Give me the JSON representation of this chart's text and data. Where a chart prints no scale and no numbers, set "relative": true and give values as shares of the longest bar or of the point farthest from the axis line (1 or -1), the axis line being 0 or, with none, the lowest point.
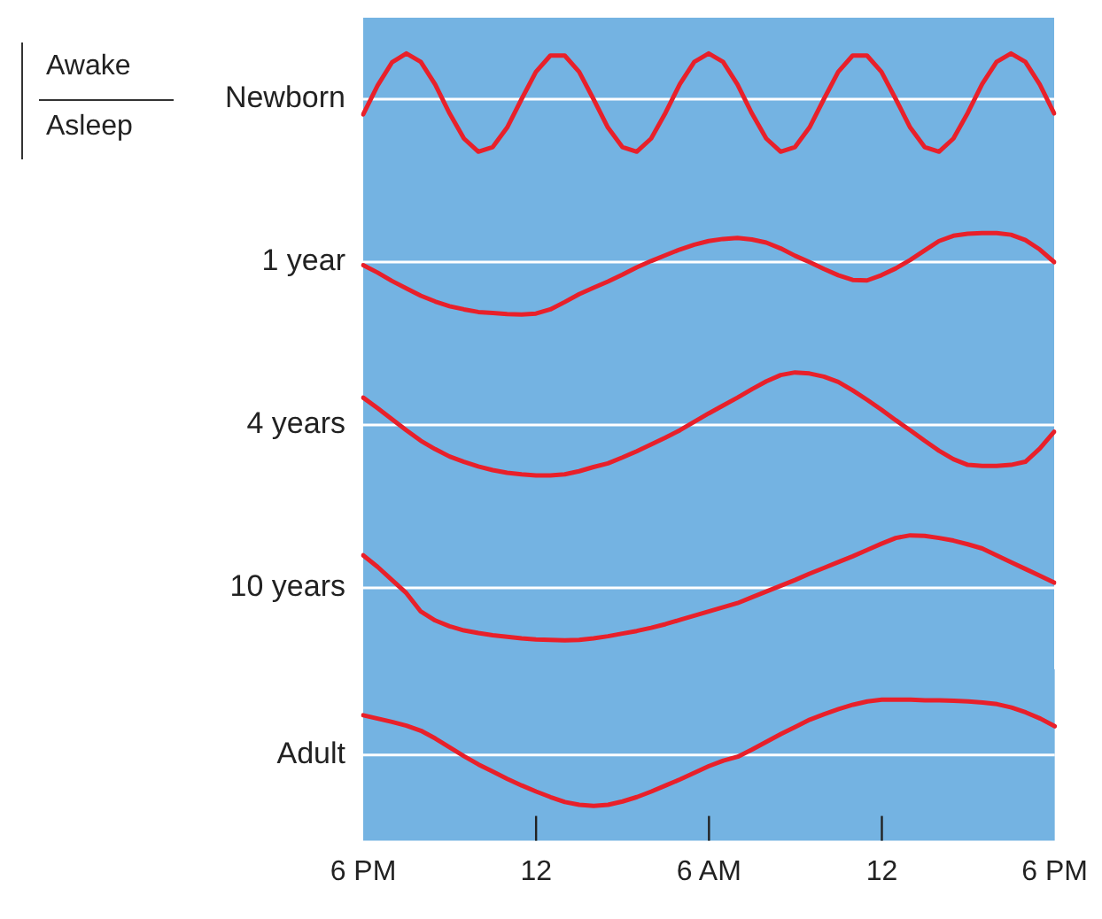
{
  "chart_data": [
    {
      "type": "line",
      "ylabel": "Newborn",
      "annotations": [
        "Awake",
        "Asleep"
      ],
      "relative": true,
      "marker": "none",
      "tick_labels": false,
      "categories": [
        null,
        null,
        null,
        null,
        null,
        null,
        null,
        null,
        null,
        null,
        null,
        null,
        null,
        null,
        null,
        null,
        null,
        null,
        null,
        null,
        null,
        null,
        null,
        null,
        null,
        null,
        null,
        null,
        null,
        null,
        null,
        null,
        null,
        null,
        null,
        null,
        null,
        null,
        null,
        null,
        null,
        null,
        null,
        null,
        null,
        null,
        null,
        null,
        null
      ],
      "series": [
        {
          "color": "#e8202a",
          "values": [
            -0.29,
            0.26,
            0.7,
            0.87,
            0.71,
            0.28,
            -0.27,
            -0.75,
            -1,
            -0.91,
            -0.54,
            0,
            0.52,
            0.83,
            0.83,
            0.52,
            0,
            -0.54,
            -0.91,
            -1,
            -0.75,
            -0.26,
            0.29,
            0.71,
            0.87,
            0.71,
            0.28,
            -0.27,
            -0.75,
            -1,
            -0.91,
            -0.54,
            0,
            0.52,
            0.83,
            0.83,
            0.52,
            0,
            -0.54,
            -0.91,
            -1,
            -0.75,
            -0.26,
            0.29,
            0.71,
            0.87,
            0.71,
            0.28,
            -0.27
          ]
        }
      ]
    },
    {
      "type": "line",
      "ylabel": "1 year",
      "relative": true,
      "marker": "none",
      "tick_labels": false,
      "categories": [
        null,
        null,
        null,
        null,
        null,
        null,
        null,
        null,
        null,
        null,
        null,
        null,
        null,
        null,
        null,
        null,
        null,
        null,
        null,
        null,
        null,
        null,
        null,
        null,
        null,
        null,
        null,
        null,
        null,
        null,
        null,
        null,
        null,
        null,
        null,
        null,
        null,
        null,
        null,
        null,
        null,
        null,
        null,
        null,
        null,
        null,
        null,
        null,
        null
      ],
      "series": [
        {
          "color": "#e8202a",
          "values": [
            -0.06,
            -0.2,
            -0.36,
            -0.5,
            -0.64,
            -0.75,
            -0.84,
            -0.9,
            -0.95,
            -0.97,
            -0.99,
            -1,
            -0.98,
            -0.9,
            -0.76,
            -0.61,
            -0.49,
            -0.37,
            -0.24,
            -0.1,
            0.02,
            0.13,
            0.24,
            0.33,
            0.4,
            0.44,
            0.46,
            0.43,
            0.37,
            0.26,
            0.12,
            0,
            -0.13,
            -0.25,
            -0.34,
            -0.35,
            -0.25,
            -0.12,
            0.04,
            0.22,
            0.4,
            0.5,
            0.54,
            0.55,
            0.55,
            0.52,
            0.42,
            0.24,
            0
          ]
        }
      ]
    },
    {
      "type": "line",
      "ylabel": "4 years",
      "relative": true,
      "marker": "none",
      "tick_labels": false,
      "categories": [
        null,
        null,
        null,
        null,
        null,
        null,
        null,
        null,
        null,
        null,
        null,
        null,
        null,
        null,
        null,
        null,
        null,
        null,
        null,
        null,
        null,
        null,
        null,
        null,
        null,
        null,
        null,
        null,
        null,
        null,
        null,
        null,
        null,
        null,
        null,
        null,
        null,
        null,
        null,
        null,
        null,
        null,
        null,
        null,
        null,
        null,
        null,
        null,
        null
      ],
      "series": [
        {
          "color": "#e8202a",
          "values": [
            0.52,
            0.32,
            0.11,
            -0.1,
            -0.3,
            -0.46,
            -0.6,
            -0.7,
            -0.79,
            -0.86,
            -0.91,
            -0.94,
            -0.96,
            -0.96,
            -0.94,
            -0.88,
            -0.8,
            -0.73,
            -0.62,
            -0.5,
            -0.37,
            -0.24,
            -0.1,
            0.06,
            0.22,
            0.37,
            0.52,
            0.68,
            0.83,
            0.95,
            1,
            0.98,
            0.92,
            0.82,
            0.66,
            0.48,
            0.29,
            0.09,
            -0.1,
            -0.3,
            -0.49,
            -0.65,
            -0.76,
            -0.78,
            -0.78,
            -0.76,
            -0.7,
            -0.45,
            -0.13
          ]
        }
      ]
    },
    {
      "type": "line",
      "ylabel": "10 years",
      "relative": true,
      "marker": "none",
      "tick_labels": false,
      "categories": [
        null,
        null,
        null,
        null,
        null,
        null,
        null,
        null,
        null,
        null,
        null,
        null,
        null,
        null,
        null,
        null,
        null,
        null,
        null,
        null,
        null,
        null,
        null,
        null,
        null,
        null,
        null,
        null,
        null,
        null,
        null,
        null,
        null,
        null,
        null,
        null,
        null,
        null,
        null,
        null,
        null,
        null,
        null,
        null,
        null,
        null,
        null,
        null,
        null
      ],
      "series": [
        {
          "color": "#e8202a",
          "values": [
            0.62,
            0.4,
            0.15,
            -0.1,
            -0.45,
            -0.62,
            -0.73,
            -0.81,
            -0.86,
            -0.9,
            -0.93,
            -0.96,
            -0.98,
            -0.99,
            -1,
            -0.99,
            -0.96,
            -0.92,
            -0.87,
            -0.82,
            -0.76,
            -0.69,
            -0.61,
            -0.53,
            -0.45,
            -0.37,
            -0.29,
            -0.18,
            -0.07,
            0.04,
            0.15,
            0.27,
            0.38,
            0.49,
            0.6,
            0.72,
            0.84,
            0.95,
            1,
            0.99,
            0.95,
            0.9,
            0.83,
            0.75,
            0.62,
            0.49,
            0.36,
            0.23,
            0.1
          ]
        }
      ]
    },
    {
      "type": "line",
      "ylabel": "Adult",
      "relative": true,
      "marker": "none",
      "tick_labels": "x",
      "categories": [
        "6 PM",
        null,
        null,
        null,
        null,
        null,
        null,
        null,
        null,
        null,
        null,
        null,
        "12",
        null,
        null,
        null,
        null,
        null,
        null,
        null,
        null,
        null,
        null,
        null,
        "6 AM",
        null,
        null,
        null,
        null,
        null,
        null,
        null,
        null,
        null,
        null,
        null,
        "12",
        null,
        null,
        null,
        null,
        null,
        null,
        null,
        null,
        null,
        null,
        null,
        "6 PM"
      ],
      "series": [
        {
          "color": "#e8202a",
          "values": [
            0.72,
            0.66,
            0.6,
            0.53,
            0.44,
            0.3,
            0.14,
            -0.02,
            -0.17,
            -0.3,
            -0.43,
            -0.55,
            -0.66,
            -0.76,
            -0.85,
            -0.9,
            -0.92,
            -0.9,
            -0.84,
            -0.76,
            -0.66,
            -0.55,
            -0.44,
            -0.32,
            -0.2,
            -0.1,
            -0.03,
            0.1,
            0.24,
            0.38,
            0.51,
            0.64,
            0.74,
            0.83,
            0.91,
            0.97,
            1,
            1,
            1,
            0.99,
            0.99,
            0.98,
            0.97,
            0.95,
            0.92,
            0.86,
            0.77,
            0.66,
            0.52
          ]
        }
      ]
    }
  ]
}
